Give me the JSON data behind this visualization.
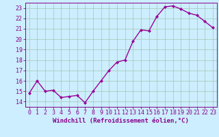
{
  "x": [
    0,
    1,
    2,
    3,
    4,
    5,
    6,
    7,
    8,
    9,
    10,
    11,
    12,
    13,
    14,
    15,
    16,
    17,
    18,
    19,
    20,
    21,
    22,
    23
  ],
  "y": [
    14.8,
    16.0,
    15.0,
    15.1,
    14.4,
    14.5,
    14.6,
    13.9,
    15.0,
    16.0,
    17.0,
    17.8,
    18.0,
    19.8,
    20.9,
    20.8,
    22.2,
    23.1,
    23.2,
    22.9,
    22.5,
    22.3,
    21.7,
    21.1
  ],
  "line_color": "#990099",
  "marker": "D",
  "marker_size": 2.0,
  "line_width": 1.0,
  "bg_color": "#cceeff",
  "grid_color": "#aaccbb",
  "xlabel": "Windchill (Refroidissement éolien,°C)",
  "xlabel_color": "#880088",
  "xlabel_fontsize": 6.5,
  "tick_color": "#880088",
  "tick_fontsize": 6.0,
  "ylim": [
    13.5,
    23.5
  ],
  "yticks": [
    14,
    15,
    16,
    17,
    18,
    19,
    20,
    21,
    22,
    23
  ],
  "xlim": [
    -0.5,
    23.5
  ],
  "xticks": [
    0,
    1,
    2,
    3,
    4,
    5,
    6,
    7,
    8,
    9,
    10,
    11,
    12,
    13,
    14,
    15,
    16,
    17,
    18,
    19,
    20,
    21,
    22,
    23
  ]
}
